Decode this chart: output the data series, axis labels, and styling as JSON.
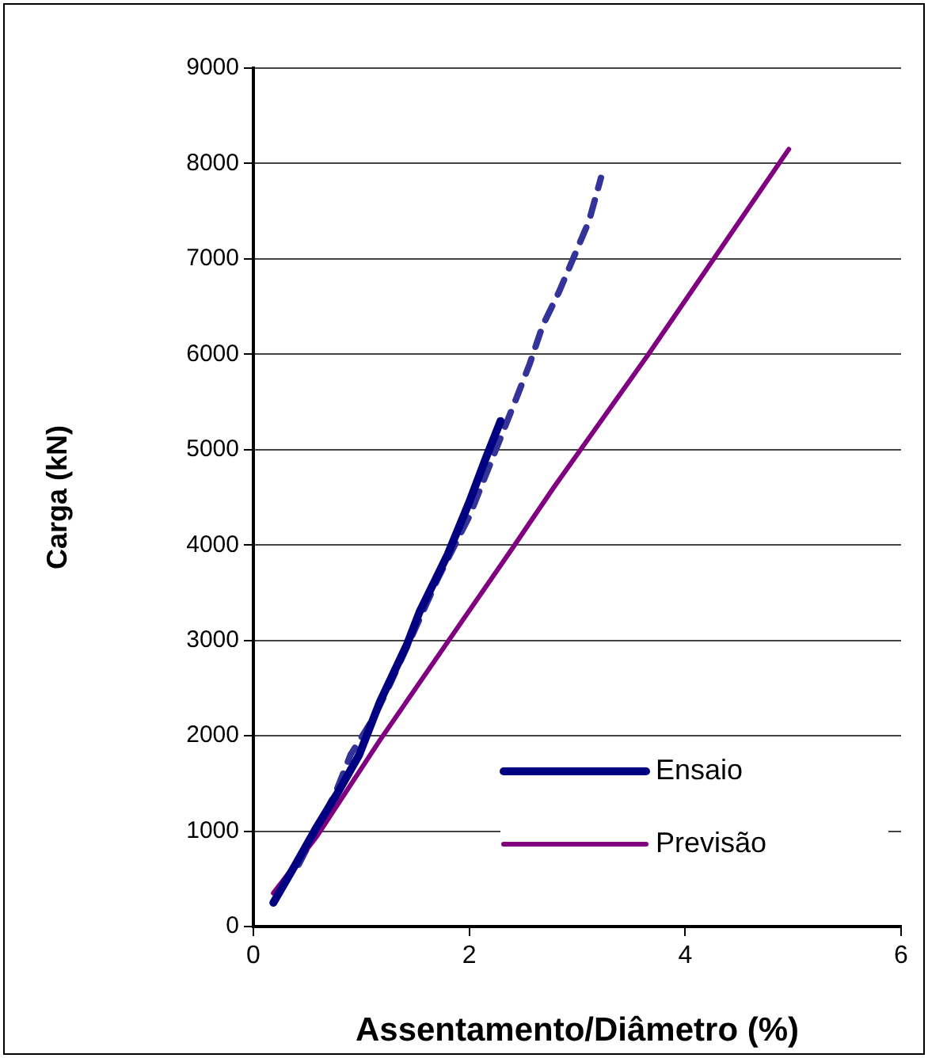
{
  "chart_data": {
    "type": "line",
    "xlabel": "Assentamento/Diâmetro (%)",
    "ylabel": "Carga (kN)",
    "xlim": [
      0,
      6
    ],
    "xticks": [
      0,
      2,
      4,
      6
    ],
    "ylim": [
      0,
      9000
    ],
    "yticks": [
      0,
      1000,
      2000,
      3000,
      4000,
      5000,
      6000,
      7000,
      8000,
      9000
    ],
    "grid": "y",
    "legend": "bottom right",
    "marker": "none",
    "series": [
      {
        "name": "Ensaio",
        "color": "#000080",
        "x": [
          0.185,
          0.39,
          0.59,
          0.78,
          0.98,
          1.17,
          1.42,
          1.54,
          1.8,
          2.0,
          2.15,
          2.29
        ],
        "values": [
          250,
          650,
          1050,
          1400,
          1800,
          2350,
          2950,
          3300,
          3900,
          4450,
          4900,
          5300
        ]
      },
      {
        "name": "Previsão",
        "color": "#800080",
        "x": [
          0.185,
          0.59,
          1.17,
          1.81,
          2.39,
          2.78,
          3.66,
          4.96
        ],
        "values": [
          350,
          950,
          1950,
          3000,
          3950,
          4600,
          6000,
          8150
        ]
      },
      {
        "color": "#333399",
        "line_style": "dashed",
        "x": [
          0.42,
          0.76,
          0.9,
          1.12,
          1.27,
          1.71,
          2.0,
          2.44,
          2.56,
          2.68,
          2.83,
          2.98,
          3.11,
          3.22
        ],
        "values": [
          650,
          1400,
          1800,
          2200,
          2550,
          3650,
          4300,
          5550,
          5900,
          6300,
          6650,
          7050,
          7400,
          7850
        ]
      }
    ]
  }
}
